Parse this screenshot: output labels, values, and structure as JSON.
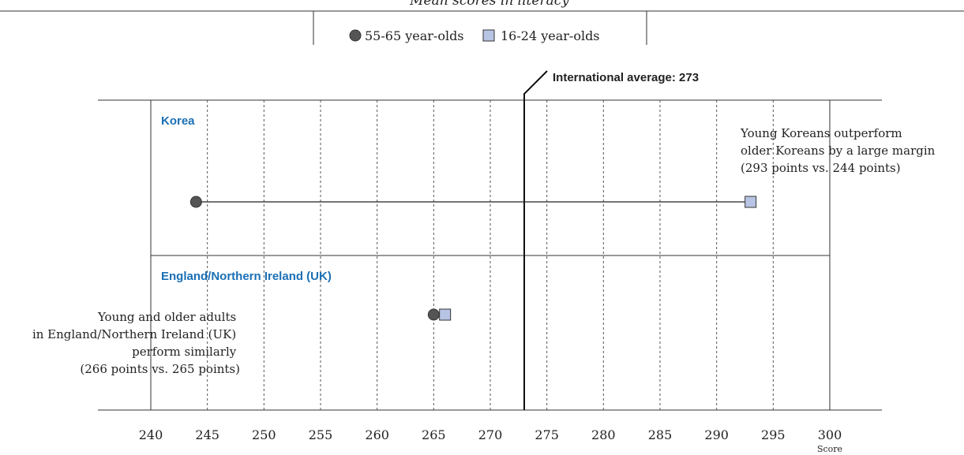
{
  "chart_data": {
    "type": "scatter",
    "title": "Mean scores in literacy",
    "xlabel": "Score",
    "xlim": [
      240,
      300
    ],
    "ticks": [
      240,
      245,
      250,
      255,
      260,
      265,
      270,
      275,
      280,
      285,
      290,
      295,
      300
    ],
    "tick_labels": [
      "240",
      "245",
      "250",
      "255",
      "260",
      "265",
      "270",
      "275",
      "280",
      "285",
      "290",
      "295",
      "300"
    ],
    "legend_position": "top-center",
    "grid": true,
    "series": [
      {
        "name": "55-65 year-olds",
        "marker": "circle",
        "color": "#555555"
      },
      {
        "name": "16-24 year-olds",
        "marker": "square",
        "color": "#b8c4e3"
      }
    ],
    "panels": [
      {
        "label": "Korea",
        "values": {
          "55-65 year-olds": 244,
          "16-24 year-olds": 293
        },
        "annotation": [
          "Young Koreans outperform",
          "older Koreans by a large margin",
          "(293 points vs. 244 points)"
        ]
      },
      {
        "label": "England/Northern Ireland (UK)",
        "values": {
          "55-65 year-olds": 265,
          "16-24 year-olds": 266
        },
        "annotation": [
          "Young and older adults",
          "in England/Northern Ireland (UK)",
          "perform similarly",
          "(266 points vs. 265 points)"
        ]
      }
    ],
    "reference_line": {
      "label": "International average: 273",
      "value": 273
    }
  },
  "colors": {
    "panel_label": "#1a6fb5",
    "older_marker": "#555555",
    "younger_marker": "#b8c4e3",
    "marker_stroke": "#333333",
    "grid": "#555555"
  }
}
